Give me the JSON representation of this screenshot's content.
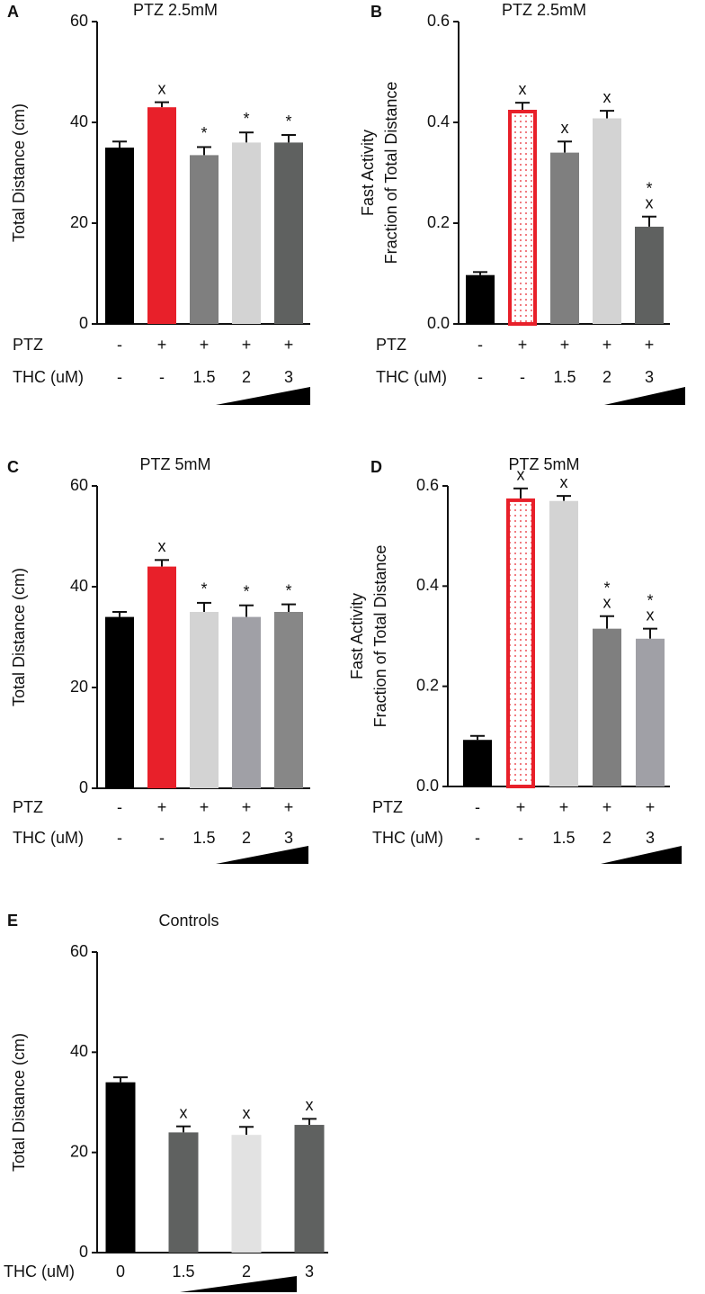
{
  "chart_data": [
    {
      "type": "bar",
      "panel_label": "A",
      "title": "PTZ 2.5mM",
      "ylabel": [
        "Total Distance (cm)"
      ],
      "values": [
        35,
        43,
        33.5,
        36,
        36
      ],
      "errors": [
        1.2,
        1,
        1.6,
        2,
        1.5
      ],
      "colors": [
        "#000000",
        "#e8202a",
        "#7f7f7f",
        "#d3d3d3",
        "#5f6160"
      ],
      "patterned": [
        false,
        false,
        false,
        false,
        false
      ],
      "annotations": [
        [],
        [
          "x"
        ],
        [
          "*"
        ],
        [
          "*"
        ],
        [
          "*"
        ]
      ],
      "rows": [
        {
          "label": "PTZ",
          "values": [
            "-",
            "+",
            "+",
            "+",
            "+"
          ]
        },
        {
          "label": "THC (uM)",
          "values": [
            "-",
            "-",
            "1.5",
            "2",
            "3"
          ]
        }
      ],
      "ylim": [
        0,
        60
      ],
      "yticks": [
        0,
        20,
        40,
        60
      ]
    },
    {
      "type": "bar",
      "panel_label": "B",
      "title": "PTZ 2.5mM",
      "ylabel": [
        "Fast Activity",
        "Fraction of Total Distance"
      ],
      "values": [
        0.097,
        0.425,
        0.34,
        0.408,
        0.193
      ],
      "errors": [
        0.006,
        0.014,
        0.022,
        0.015,
        0.02
      ],
      "colors": [
        "#000000",
        "#e8202a",
        "#7f7f7f",
        "#d3d3d3",
        "#5f6160"
      ],
      "patterned": [
        false,
        true,
        false,
        false,
        false
      ],
      "annotations": [
        [],
        [
          "x"
        ],
        [
          "x"
        ],
        [
          "x"
        ],
        [
          "*",
          "x"
        ]
      ],
      "rows": [
        {
          "label": "PTZ",
          "values": [
            "-",
            "+",
            "+",
            "+",
            "+"
          ]
        },
        {
          "label": "THC (uM)",
          "values": [
            "-",
            "-",
            "1.5",
            "2",
            "3"
          ]
        }
      ],
      "ylim": [
        0,
        0.6
      ],
      "yticks": [
        {
          "value": 0,
          "label": "0.0"
        },
        0.2,
        0.4,
        0.6
      ]
    },
    {
      "type": "bar",
      "panel_label": "C",
      "title": "PTZ 5mM",
      "ylabel": [
        "Total Distance (cm)"
      ],
      "values": [
        34,
        44,
        35,
        34,
        35
      ],
      "errors": [
        1,
        1.3,
        1.8,
        2.3,
        1.5
      ],
      "colors": [
        "#000000",
        "#e8202a",
        "#d3d3d3",
        "#a0a0a6",
        "#878787"
      ],
      "patterned": [
        false,
        false,
        false,
        false,
        false
      ],
      "annotations": [
        [],
        [
          "x"
        ],
        [
          "*"
        ],
        [
          "*"
        ],
        [
          "*"
        ]
      ],
      "rows": [
        {
          "label": "PTZ",
          "values": [
            "-",
            "+",
            "+",
            "+",
            "+"
          ]
        },
        {
          "label": "THC (uM)",
          "values": [
            "-",
            "-",
            "1.5",
            "2",
            "3"
          ]
        }
      ],
      "ylim": [
        0,
        60
      ],
      "yticks": [
        0,
        20,
        40,
        60
      ]
    },
    {
      "type": "bar",
      "panel_label": "D",
      "title": "PTZ 5mM",
      "ylabel": [
        "Fast Activity",
        "Fraction of Total Distance"
      ],
      "values": [
        0.093,
        0.575,
        0.57,
        0.315,
        0.295
      ],
      "errors": [
        0.008,
        0.02,
        0.01,
        0.025,
        0.02
      ],
      "colors": [
        "#000000",
        "#e8202a",
        "#d3d3d3",
        "#7f7f7f",
        "#a0a0a6"
      ],
      "patterned": [
        false,
        true,
        false,
        false,
        false
      ],
      "annotations": [
        [],
        [
          "x"
        ],
        [
          "x"
        ],
        [
          "*",
          "x"
        ],
        [
          "*",
          "x"
        ]
      ],
      "rows": [
        {
          "label": "PTZ",
          "values": [
            "-",
            "+",
            "+",
            "+",
            "+"
          ]
        },
        {
          "label": "THC (uM)",
          "values": [
            "-",
            "-",
            "1.5",
            "2",
            "3"
          ]
        }
      ],
      "ylim": [
        0,
        0.6
      ],
      "yticks": [
        {
          "value": 0,
          "label": "0.0"
        },
        0.2,
        0.4,
        0.6
      ]
    },
    {
      "type": "bar",
      "panel_label": "E",
      "title": "Controls",
      "ylabel": [
        "Total Distance (cm)"
      ],
      "values": [
        34,
        24,
        23.5,
        25.5
      ],
      "errors": [
        1,
        1.2,
        1.6,
        1.2
      ],
      "colors": [
        "#000000",
        "#5f6160",
        "#e2e2e2",
        "#5f6160"
      ],
      "patterned": [
        false,
        false,
        false,
        false
      ],
      "annotations": [
        [],
        [
          "x"
        ],
        [
          "x"
        ],
        [
          "x"
        ]
      ],
      "rows": [
        {
          "label": "THC (uM)",
          "values": [
            "0",
            "1.5",
            "2",
            "3"
          ]
        }
      ],
      "ylim": [
        0,
        60
      ],
      "yticks": [
        0,
        20,
        40,
        60
      ]
    }
  ]
}
